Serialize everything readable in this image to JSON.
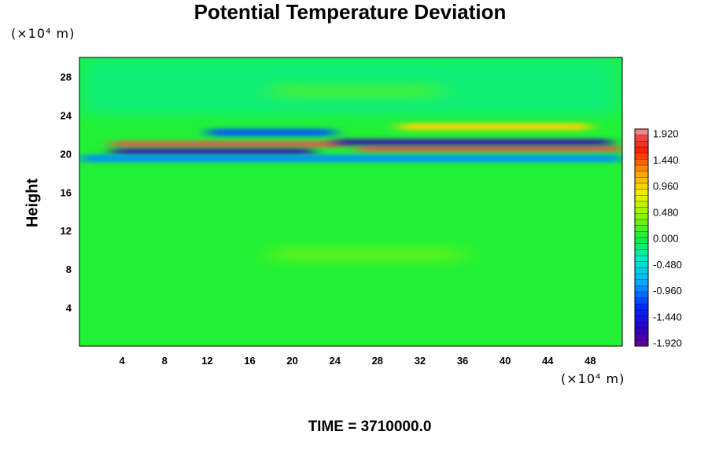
{
  "chart_data": {
    "type": "heatmap",
    "title": "Potential Temperature Deviation",
    "ylabel": "Height",
    "xunit": "(×10⁴ m)",
    "yunit": "(×10⁴ m)",
    "caption": "TIME = 3710000.0",
    "xlim": [
      0,
      51
    ],
    "ylim": [
      0,
      30
    ],
    "xticks": [
      "4",
      "8",
      "12",
      "16",
      "20",
      "24",
      "28",
      "32",
      "36",
      "40",
      "44",
      "48"
    ],
    "yticks": [
      "4",
      "8",
      "12",
      "16",
      "20",
      "24",
      "28"
    ],
    "colorbar": {
      "vmin": -2.16,
      "vmax": 2.16,
      "labels": [
        "1.920",
        "1.440",
        "0.960",
        "0.480",
        "0.000",
        "-0.480",
        "-0.960",
        "-1.440",
        "-1.920"
      ]
    },
    "features": [
      {
        "x": [
          3,
          25
        ],
        "y": 21.0,
        "value": 2.0
      },
      {
        "x": [
          3,
          22
        ],
        "y": 20.2,
        "value": -1.9
      },
      {
        "x": [
          26,
          51
        ],
        "y": 20.5,
        "value": 2.0
      },
      {
        "x": [
          24,
          50
        ],
        "y": 21.2,
        "value": -1.9
      },
      {
        "x": [
          12,
          24
        ],
        "y": 22.2,
        "value": -1.2
      },
      {
        "x": [
          30,
          48
        ],
        "y": 22.8,
        "value": 1.0
      },
      {
        "x": [
          0,
          51
        ],
        "y": 19.5,
        "value": -1.0
      },
      {
        "x": [
          18,
          34
        ],
        "y": 26.5,
        "value": 0.35
      },
      {
        "x": [
          18,
          36
        ],
        "y": 9.5,
        "value": 0.45
      }
    ]
  }
}
